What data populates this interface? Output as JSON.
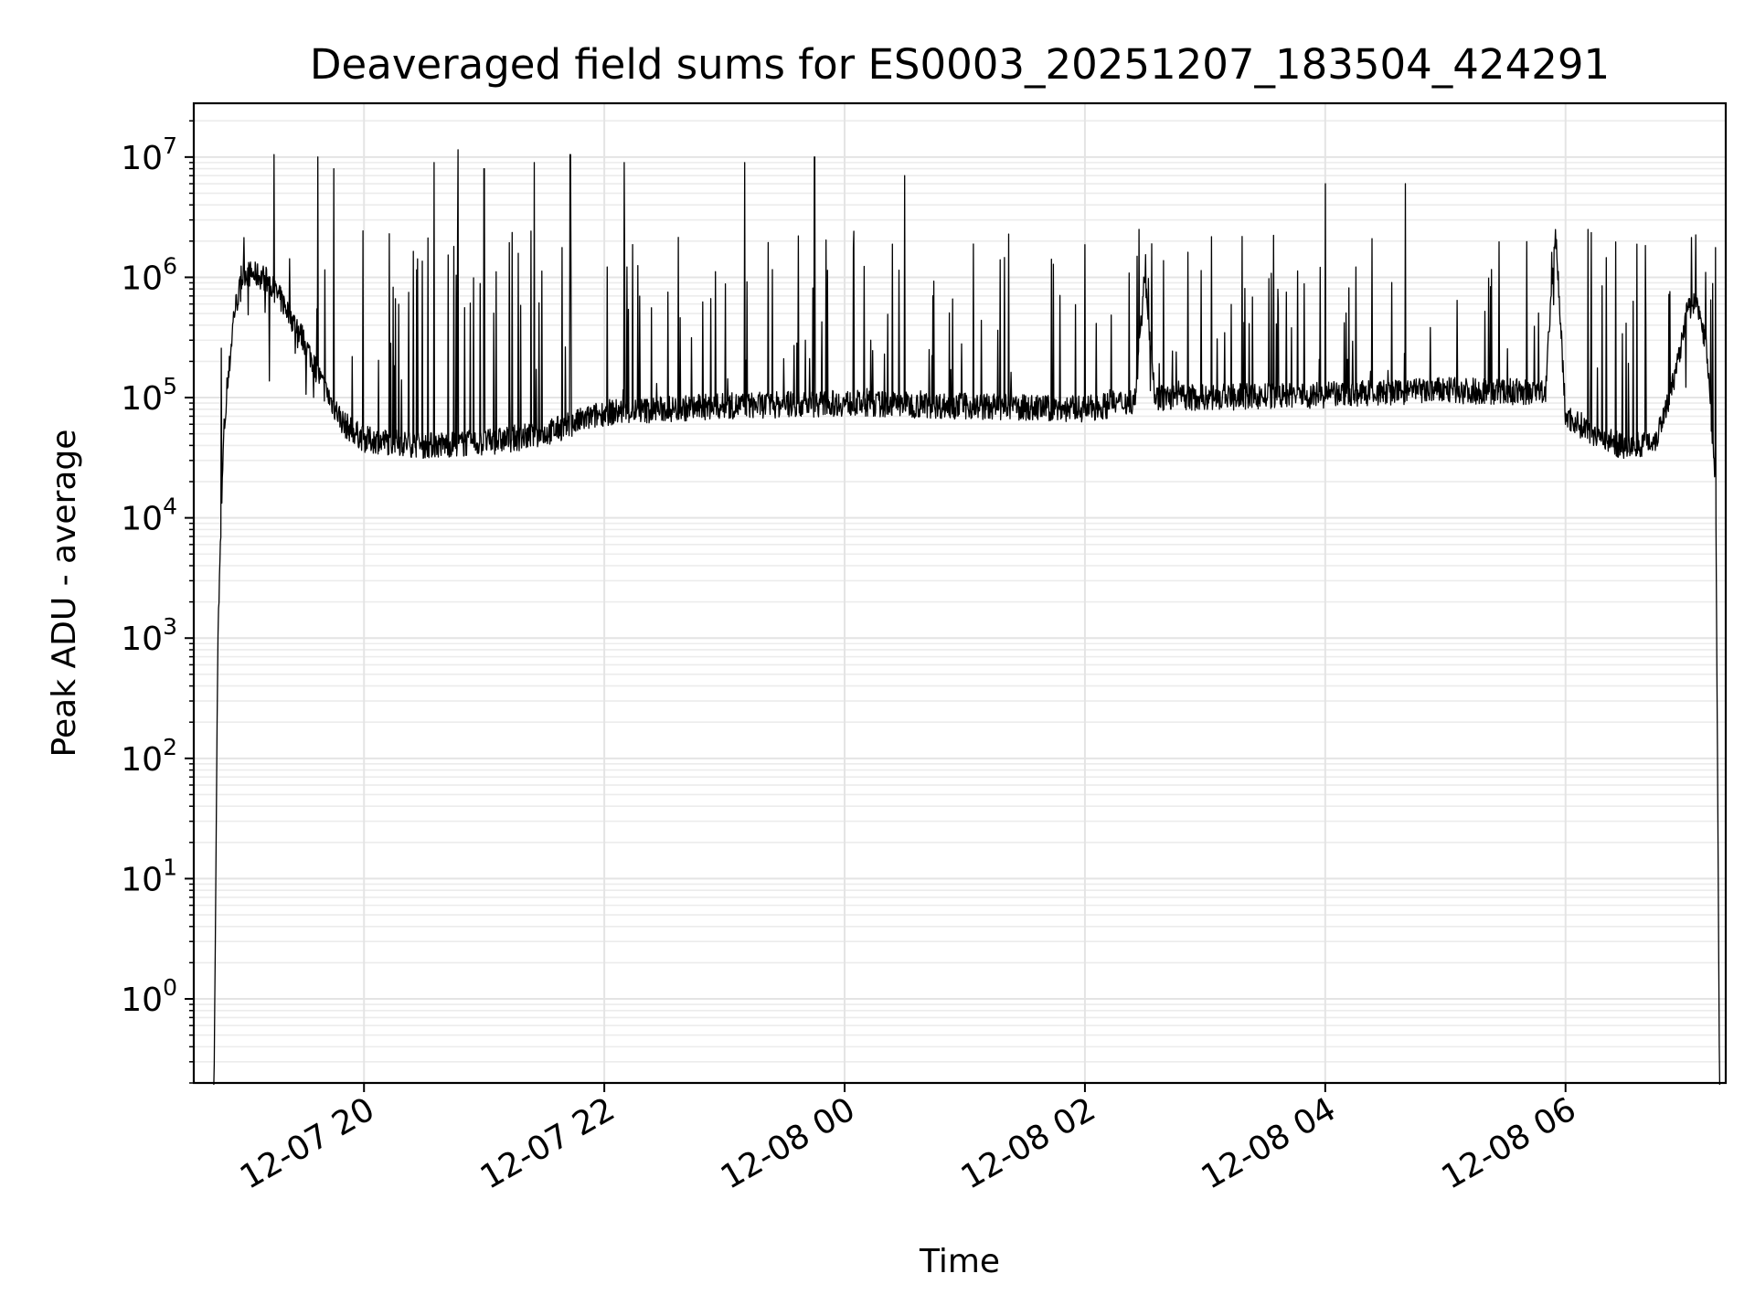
{
  "chart_data": {
    "type": "line",
    "title": "Deaveraged field sums for ES0003_20251207_183504_424291",
    "xlabel": "Time",
    "ylabel": "Peak ADU - average",
    "y_scale": "log",
    "ylim": [
      0.2,
      28000000
    ],
    "xlim": [
      "2025-12-07 18:35",
      "2025-12-08 07:20"
    ],
    "grid": "both-major-and-minor",
    "x_ticks": [
      {
        "value": "2025-12-07 20:00",
        "label": "12-07 20"
      },
      {
        "value": "2025-12-07 22:00",
        "label": "12-07 22"
      },
      {
        "value": "2025-12-08 00:00",
        "label": "12-08 00"
      },
      {
        "value": "2025-12-08 02:00",
        "label": "12-08 02"
      },
      {
        "value": "2025-12-08 04:00",
        "label": "12-08 04"
      },
      {
        "value": "2025-12-08 06:00",
        "label": "12-08 06"
      }
    ],
    "y_ticks": [
      {
        "value": 1,
        "base": "10",
        "exp": "0"
      },
      {
        "value": 10,
        "base": "10",
        "exp": "1"
      },
      {
        "value": 100,
        "base": "10",
        "exp": "2"
      },
      {
        "value": 1000,
        "base": "10",
        "exp": "3"
      },
      {
        "value": 10000,
        "base": "10",
        "exp": "4"
      },
      {
        "value": 100000,
        "base": "10",
        "exp": "5"
      },
      {
        "value": 1000000,
        "base": "10",
        "exp": "6"
      },
      {
        "value": 10000000,
        "base": "10",
        "exp": "7"
      }
    ],
    "series_color": "#000000",
    "baseline_points": [
      [
        "2025-12-07 18:45",
        0.1
      ],
      [
        "2025-12-07 18:47",
        1000
      ],
      [
        "2025-12-07 18:50",
        50000
      ],
      [
        "2025-12-07 18:55",
        500000
      ],
      [
        "2025-12-07 19:00",
        1100000
      ],
      [
        "2025-12-07 19:10",
        1000000
      ],
      [
        "2025-12-07 19:20",
        600000
      ],
      [
        "2025-12-07 19:30",
        300000
      ],
      [
        "2025-12-07 19:40",
        120000
      ],
      [
        "2025-12-07 19:50",
        60000
      ],
      [
        "2025-12-07 20:00",
        45000
      ],
      [
        "2025-12-07 20:30",
        40000
      ],
      [
        "2025-12-07 21:00",
        42000
      ],
      [
        "2025-12-07 21:30",
        50000
      ],
      [
        "2025-12-07 22:00",
        75000
      ],
      [
        "2025-12-07 23:00",
        85000
      ],
      [
        "2025-12-08 00:00",
        90000
      ],
      [
        "2025-12-08 01:00",
        85000
      ],
      [
        "2025-12-08 02:00",
        80000
      ],
      [
        "2025-12-08 02:25",
        95000
      ],
      [
        "2025-12-08 02:30",
        1100000
      ],
      [
        "2025-12-08 02:35",
        100000
      ],
      [
        "2025-12-08 03:00",
        100000
      ],
      [
        "2025-12-08 04:00",
        105000
      ],
      [
        "2025-12-08 05:00",
        115000
      ],
      [
        "2025-12-08 05:50",
        110000
      ],
      [
        "2025-12-08 05:55",
        2500000
      ],
      [
        "2025-12-08 06:00",
        70000
      ],
      [
        "2025-12-08 06:15",
        50000
      ],
      [
        "2025-12-08 06:30",
        38000
      ],
      [
        "2025-12-08 06:45",
        45000
      ],
      [
        "2025-12-08 06:55",
        150000
      ],
      [
        "2025-12-08 07:00",
        500000
      ],
      [
        "2025-12-08 07:05",
        650000
      ],
      [
        "2025-12-08 07:10",
        300000
      ],
      [
        "2025-12-08 07:15",
        20000
      ],
      [
        "2025-12-08 07:17",
        0.1
      ]
    ],
    "spikes": [
      [
        "2025-12-07 19:15",
        10500000
      ],
      [
        "2025-12-07 19:37",
        10000000
      ],
      [
        "2025-12-07 19:45",
        8000000
      ],
      [
        "2025-12-07 20:35",
        9000000
      ],
      [
        "2025-12-07 20:47",
        11500000
      ],
      [
        "2025-12-07 21:00",
        8000000
      ],
      [
        "2025-12-07 21:25",
        9000000
      ],
      [
        "2025-12-07 21:43",
        10500000
      ],
      [
        "2025-12-07 22:10",
        9000000
      ],
      [
        "2025-12-07 23:10",
        9000000
      ],
      [
        "2025-12-07 23:45",
        10000000
      ],
      [
        "2025-12-08 00:30",
        7000000
      ],
      [
        "2025-12-08 04:00",
        6000000
      ],
      [
        "2025-12-08 04:40",
        6000000
      ],
      [
        "2025-12-08 05:55",
        2500000
      ],
      [
        "2025-12-08 07:10",
        1100000
      ]
    ]
  }
}
